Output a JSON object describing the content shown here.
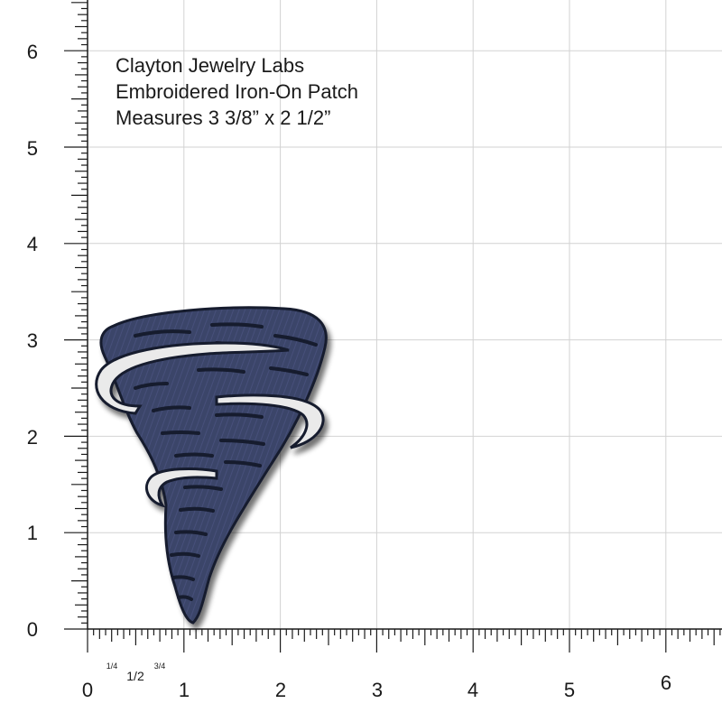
{
  "caption": {
    "brand": "Clayton Jewelry Labs",
    "product": "Embroidered Iron-On Patch",
    "measurement": "Measures 3 3/8” x 2 1/2”"
  },
  "ruler": {
    "vertical_labels": [
      "0",
      "1",
      "2",
      "3",
      "4",
      "5",
      "6"
    ],
    "horizontal_labels": [
      "0",
      "1",
      "2",
      "3",
      "4",
      "5",
      "6"
    ],
    "fraction_labels": [
      "1/4",
      "1/2",
      "3/4"
    ]
  },
  "colors": {
    "patch_fill": "#3b4569",
    "patch_stitch": "#151a2d",
    "swirl_fill": "#eaeaea",
    "grid_line": "#d2d2d2",
    "ruler_ink": "#1a1a1a"
  },
  "patch_icon": "tornado-patch-icon"
}
